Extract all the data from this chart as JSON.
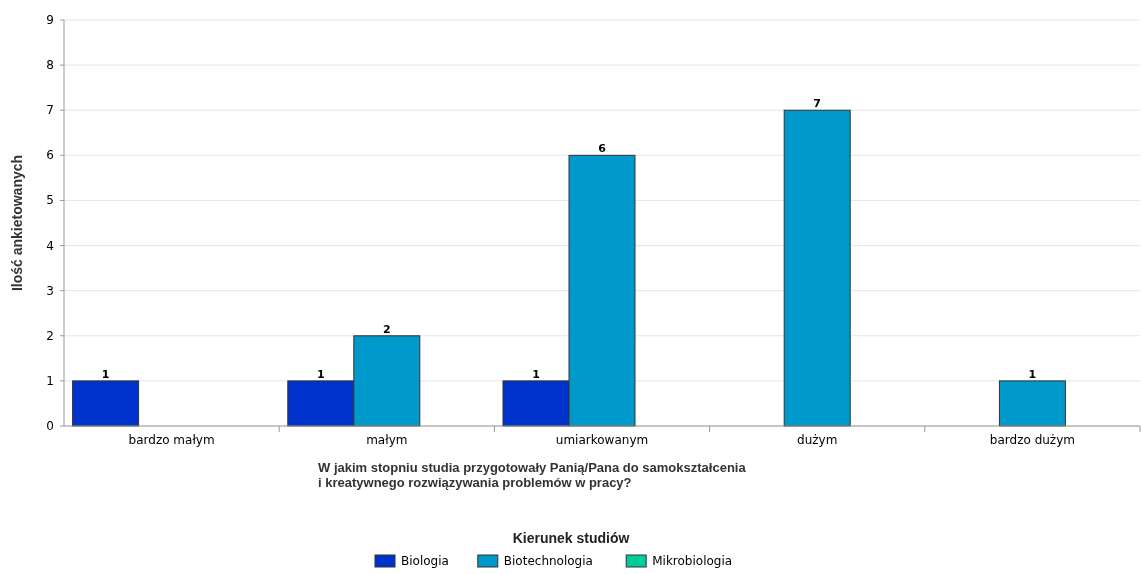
{
  "chart_data": {
    "type": "bar",
    "xlabel": "W jakim stopniu studia przygotowały Panią/Pana do samokształcenia\ni kreatywnego rozwiązywania problemów w pracy?",
    "ylabel": "Ilość ankietowanych",
    "legend_title": "Kierunek studiów",
    "categories": [
      "bardzo małym",
      "małym",
      "umiarkowanym",
      "dużym",
      "bardzo dużym"
    ],
    "series": [
      {
        "name": "Biologia",
        "color": "#0033cc",
        "values": [
          1,
          1,
          1,
          null,
          null
        ]
      },
      {
        "name": "Biotechnologia",
        "color": "#0099cc",
        "values": [
          null,
          2,
          6,
          7,
          1
        ]
      },
      {
        "name": "Mikrobiologia",
        "color": "#00cc99",
        "values": [
          null,
          null,
          null,
          null,
          null
        ]
      }
    ],
    "ylim": [
      0,
      9
    ],
    "yticks": [
      0,
      1,
      2,
      3,
      4,
      5,
      6,
      7,
      8,
      9
    ],
    "grid": "y",
    "legend": "bottom",
    "data_labels": true
  }
}
